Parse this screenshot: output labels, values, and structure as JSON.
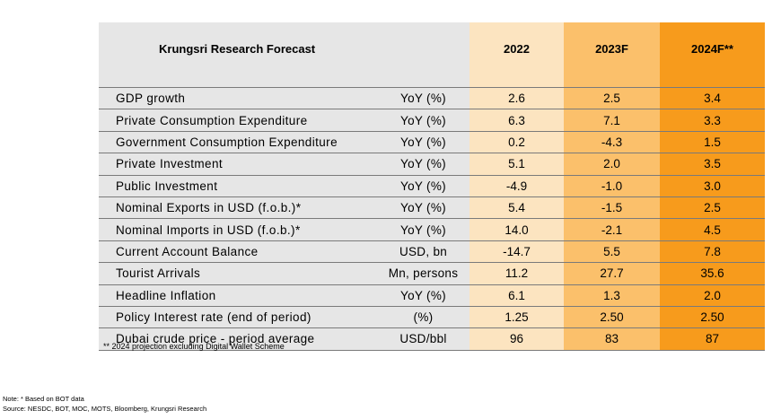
{
  "table": {
    "title": "Krungsri Research Forecast",
    "years": [
      "2022",
      "2023F",
      "2024F**"
    ],
    "rows": [
      {
        "label": "GDP growth",
        "unit": "YoY (%)",
        "values": [
          "2.6",
          "2.5",
          "3.4"
        ]
      },
      {
        "label": "Private Consumption Expenditure",
        "unit": "YoY (%)",
        "values": [
          "6.3",
          "7.1",
          "3.3"
        ]
      },
      {
        "label": "Government Consumption Expenditure",
        "unit": "YoY (%)",
        "values": [
          "0.2",
          "-4.3",
          "1.5"
        ]
      },
      {
        "label": "Private Investment",
        "unit": "YoY (%)",
        "values": [
          "5.1",
          "2.0",
          "3.5"
        ]
      },
      {
        "label": "Public Investment",
        "unit": "YoY (%)",
        "values": [
          "-4.9",
          "-1.0",
          "3.0"
        ]
      },
      {
        "label": "Nominal Exports in USD (f.o.b.)*",
        "unit": "YoY (%)",
        "values": [
          "5.4",
          "-1.5",
          "2.5"
        ]
      },
      {
        "label": "Nominal Imports in USD (f.o.b.)*",
        "unit": "YoY (%)",
        "values": [
          "14.0",
          "-2.1",
          "4.5"
        ]
      },
      {
        "label": "Current Account Balance",
        "unit": "USD, bn",
        "values": [
          "-14.7",
          "5.5",
          "7.8"
        ]
      },
      {
        "label": "Tourist Arrivals",
        "unit": "Mn, persons",
        "values": [
          "11.2",
          "27.7",
          "35.6"
        ]
      },
      {
        "label": "Headline Inflation",
        "unit": "YoY (%)",
        "values": [
          "6.1",
          "1.3",
          "2.0"
        ]
      },
      {
        "label": "Policy Interest rate (end of period)",
        "unit": "(%)",
        "values": [
          "1.25",
          "2.50",
          "2.50"
        ]
      },
      {
        "label": "Dubai crude price - period average",
        "unit": "USD/bbl",
        "values": [
          "96",
          "83",
          "87"
        ]
      }
    ]
  },
  "footnote": "** 2024 projection excluding Digital Wallet Scheme",
  "note": "Note: * Based on BOT data",
  "source": "Source: NESDC, BOT, MOC, MOTS, Bloomberg, Krungsri Research",
  "colors": {
    "label_bg": "#e6e6e6",
    "col_2022": "#fce4c0",
    "col_2023F": "#fbc06b",
    "col_2024F": "#f79b1c"
  }
}
